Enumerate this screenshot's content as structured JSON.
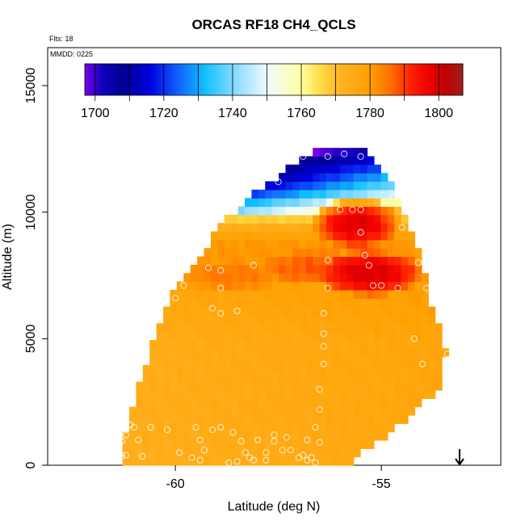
{
  "chart_data": {
    "type": "heatmap",
    "title": "ORCAS RF18 CH4_QCLS",
    "annotations": {
      "flights": "Flts: 18",
      "mmdd": "MMDD: 0225"
    },
    "xlabel": "Latitude (deg N)",
    "ylabel": "Altitude (m)",
    "xlim": [
      -63.1,
      -52.1
    ],
    "ylim": [
      0,
      16500
    ],
    "x_ticks": [
      {
        "value": -60,
        "label": "-60"
      },
      {
        "value": -55,
        "label": "-55"
      }
    ],
    "y_ticks": [
      {
        "value": 0,
        "label": "0"
      },
      {
        "value": 5000,
        "label": "5000"
      },
      {
        "value": 10000,
        "label": "10000"
      },
      {
        "value": 15000,
        "label": "15000"
      }
    ],
    "colorbar": {
      "min": 1697,
      "max": 1807,
      "ticks": [
        {
          "value": 1700,
          "label": "1700"
        },
        {
          "value": 1720,
          "label": "1720"
        },
        {
          "value": 1740,
          "label": "1740"
        },
        {
          "value": 1760,
          "label": "1760"
        },
        {
          "value": 1780,
          "label": "1780"
        },
        {
          "value": 1800,
          "label": "1800"
        }
      ],
      "stops": [
        {
          "v": 1697,
          "c": "#7a00e6"
        },
        {
          "v": 1702,
          "c": "#1000c0"
        },
        {
          "v": 1708,
          "c": "#000090"
        },
        {
          "v": 1716,
          "c": "#0000e0"
        },
        {
          "v": 1724,
          "c": "#1060ff"
        },
        {
          "v": 1732,
          "c": "#10c0ff"
        },
        {
          "v": 1740,
          "c": "#80d8ff"
        },
        {
          "v": 1750,
          "c": "#f0fbff"
        },
        {
          "v": 1760,
          "c": "#ffffa0"
        },
        {
          "v": 1766,
          "c": "#ffd840"
        },
        {
          "v": 1772,
          "c": "#ffb020"
        },
        {
          "v": 1780,
          "c": "#ffa000"
        },
        {
          "v": 1786,
          "c": "#ff7000"
        },
        {
          "v": 1792,
          "c": "#ff2000"
        },
        {
          "v": 1797,
          "c": "#ee0000"
        },
        {
          "v": 1802,
          "c": "#c00000"
        },
        {
          "v": 1807,
          "c": "#a02020"
        }
      ]
    },
    "grid_cell": {
      "dlat": 0.165,
      "dalt": 330
    },
    "profile": [
      {
        "alt": 0,
        "lat_min": -61.3,
        "lat_max": -55.9
      },
      {
        "alt": 1500,
        "lat_min": -61.2,
        "lat_max": -54.6
      },
      {
        "alt": 3000,
        "lat_min": -60.9,
        "lat_max": -53.6
      },
      {
        "alt": 4500,
        "lat_min": -60.6,
        "lat_max": -53.4
      },
      {
        "alt": 6000,
        "lat_min": -60.3,
        "lat_max": -53.7
      },
      {
        "alt": 7000,
        "lat_min": -60.0,
        "lat_max": -53.9
      },
      {
        "alt": 8000,
        "lat_min": -59.5,
        "lat_max": -54.0
      },
      {
        "alt": 9000,
        "lat_min": -59.1,
        "lat_max": -54.2
      },
      {
        "alt": 10000,
        "lat_min": -58.6,
        "lat_max": -54.5
      },
      {
        "alt": 11000,
        "lat_min": -57.9,
        "lat_max": -54.7
      },
      {
        "alt": 11900,
        "lat_min": -57.1,
        "lat_max": -55.0
      },
      {
        "alt": 12500,
        "lat_min": -56.6,
        "lat_max": -55.5
      }
    ],
    "upper_layers": [
      {
        "alt": 12500,
        "value": 1697
      },
      {
        "alt": 12000,
        "value": 1712
      },
      {
        "alt": 11400,
        "value": 1722
      },
      {
        "alt": 10900,
        "value": 1732
      },
      {
        "alt": 10500,
        "value": 1745
      },
      {
        "alt": 10200,
        "value": 1756
      },
      {
        "alt": 9800,
        "value": 1766
      },
      {
        "alt": 9300,
        "value": 1776
      },
      {
        "alt": 8800,
        "value": 1781
      },
      {
        "alt": 8000,
        "value": 1781
      },
      {
        "alt": 7000,
        "value": 1779
      },
      {
        "alt": 5000,
        "value": 1776
      },
      {
        "alt": 0,
        "value": 1775
      }
    ],
    "hotspots": [
      {
        "lat": -55.6,
        "alt": 9600,
        "value": 1799,
        "r_lat": 1.1,
        "r_alt": 1000
      },
      {
        "lat": -55.3,
        "alt": 7600,
        "value": 1799,
        "r_lat": 1.3,
        "r_alt": 900
      },
      {
        "lat": -56.6,
        "alt": 7800,
        "value": 1788,
        "r_lat": 1.3,
        "r_alt": 700
      },
      {
        "lat": -58.6,
        "alt": 7500,
        "value": 1785,
        "r_lat": 1.2,
        "r_alt": 600
      }
    ],
    "samples": [
      [
        -57.3,
        12100
      ],
      [
        -56.9,
        12200
      ],
      [
        -56.3,
        12200
      ],
      [
        -55.9,
        12300
      ],
      [
        -55.5,
        12200
      ],
      [
        -57.5,
        11200
      ],
      [
        -56.0,
        10100
      ],
      [
        -55.7,
        10100
      ],
      [
        -55.5,
        10100
      ],
      [
        -54.7,
        10600
      ],
      [
        -54.5,
        9400
      ],
      [
        -55.5,
        9200
      ],
      [
        -56.3,
        8100
      ],
      [
        -55.4,
        8300
      ],
      [
        -55.3,
        7900
      ],
      [
        -55.2,
        7100
      ],
      [
        -55.0,
        7100
      ],
      [
        -54.6,
        7000
      ],
      [
        -54.1,
        8000
      ],
      [
        -53.9,
        7000
      ],
      [
        -56.3,
        7000
      ],
      [
        -58.1,
        7900
      ],
      [
        -59.2,
        7800
      ],
      [
        -58.9,
        7700
      ],
      [
        -59.8,
        7100
      ],
      [
        -60.0,
        6600
      ],
      [
        -58.9,
        7000
      ],
      [
        -59.1,
        6200
      ],
      [
        -58.9,
        6000
      ],
      [
        -58.5,
        6100
      ],
      [
        -56.4,
        6000
      ],
      [
        -56.4,
        5200
      ],
      [
        -56.4,
        4700
      ],
      [
        -56.4,
        4000
      ],
      [
        -56.5,
        3000
      ],
      [
        -56.5,
        2200
      ],
      [
        -56.6,
        1500
      ],
      [
        -54.2,
        5000
      ],
      [
        -54.0,
        4000
      ],
      [
        -53.6,
        6000
      ],
      [
        -53.4,
        4400
      ],
      [
        -60.8,
        4800
      ],
      [
        -60.9,
        4200
      ],
      [
        -61.0,
        3700
      ],
      [
        -61.2,
        3100
      ],
      [
        -61.1,
        1600
      ],
      [
        -61.2,
        1200
      ],
      [
        -61.0,
        1500
      ],
      [
        -60.9,
        1000
      ],
      [
        -61.3,
        950
      ],
      [
        -61.4,
        900
      ],
      [
        -61.2,
        400
      ],
      [
        -61.3,
        350
      ],
      [
        -60.8,
        350
      ],
      [
        -60.6,
        1500
      ],
      [
        -60.2,
        1400
      ],
      [
        -59.9,
        500
      ],
      [
        -59.6,
        300
      ],
      [
        -59.3,
        600
      ],
      [
        -59.4,
        1000
      ],
      [
        -59.1,
        1400
      ],
      [
        -58.9,
        1500
      ],
      [
        -58.6,
        1300
      ],
      [
        -58.4,
        950
      ],
      [
        -58.3,
        500
      ],
      [
        -58.1,
        200
      ],
      [
        -57.8,
        200
      ],
      [
        -58.5,
        150
      ],
      [
        -58.0,
        1000
      ],
      [
        -57.6,
        1200
      ],
      [
        -57.3,
        1100
      ],
      [
        -57.6,
        950
      ],
      [
        -57.2,
        600
      ],
      [
        -57.0,
        300
      ],
      [
        -56.7,
        300
      ],
      [
        -56.9,
        400
      ],
      [
        -57.4,
        600
      ],
      [
        -57.8,
        500
      ],
      [
        -56.8,
        1000
      ],
      [
        -56.5,
        900
      ],
      [
        -56.8,
        200
      ],
      [
        -56.6,
        100
      ],
      [
        -58.7,
        100
      ],
      [
        -59.5,
        1500
      ],
      [
        -59.4,
        200
      ],
      [
        -58.2,
        300
      ]
    ],
    "arrow": {
      "lat": -53.1
    }
  }
}
